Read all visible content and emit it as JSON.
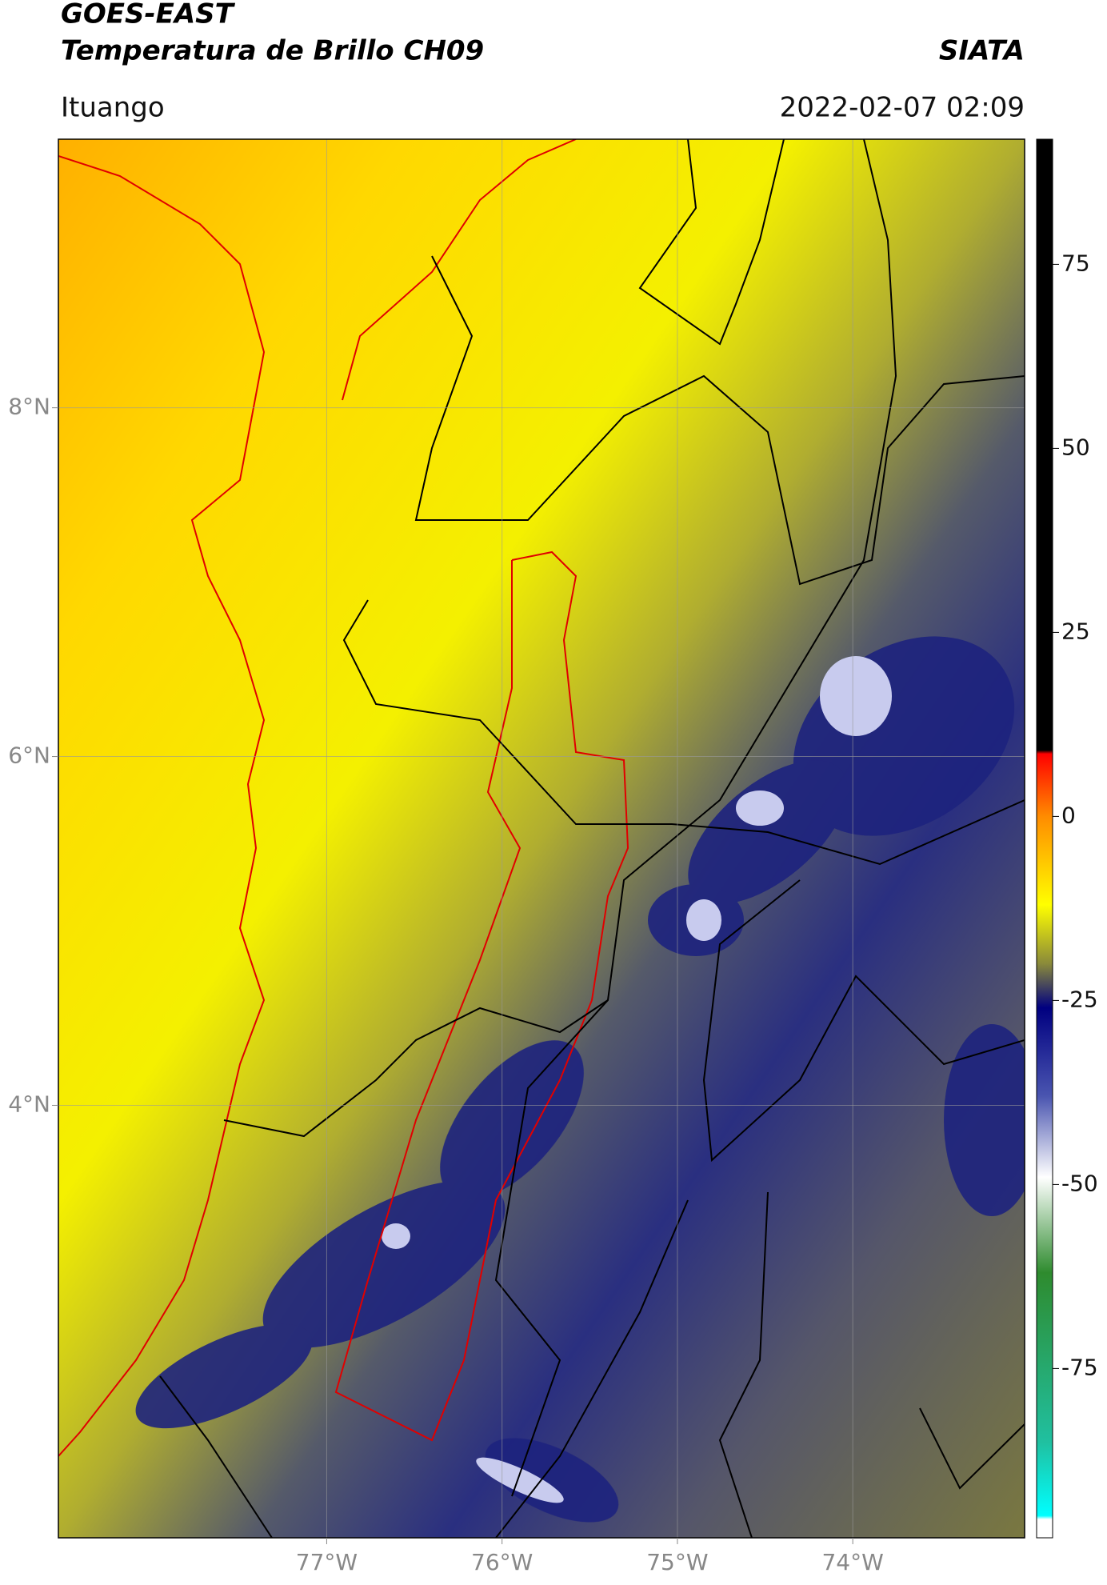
{
  "map": {
    "title": "GOES-EAST",
    "subtitle": "Temperatura de Brillo CH09",
    "brand": "SIATA",
    "location": "Ituango",
    "datetime": "2022-02-07 02:09",
    "xlim": [
      -78.53,
      -73.02
    ],
    "ylim": [
      1.52,
      9.54
    ],
    "xticks": [
      {
        "value": -77,
        "label": "77°W"
      },
      {
        "value": -76,
        "label": "76°W"
      },
      {
        "value": -75,
        "label": "75°W"
      },
      {
        "value": -74,
        "label": "74°W"
      }
    ],
    "yticks": [
      {
        "value": 8,
        "label": "8°N"
      },
      {
        "value": 6,
        "label": "6°N"
      },
      {
        "value": 4,
        "label": "4°N"
      }
    ],
    "grid": true,
    "colorbar": {
      "lim": [
        -98,
        92
      ],
      "ticks": [
        75,
        50,
        25,
        0,
        -25,
        -50,
        -75
      ],
      "stops": [
        {
          "value": 92,
          "color": "#000000"
        },
        {
          "value": 9,
          "color": "#000000"
        },
        {
          "value": 8.5,
          "color": "#ff0000"
        },
        {
          "value": 0,
          "color": "#ff8c00"
        },
        {
          "value": -12,
          "color": "#ffff00"
        },
        {
          "value": -20,
          "color": "#8a8a3a"
        },
        {
          "value": -26,
          "color": "#000080"
        },
        {
          "value": -38,
          "color": "#4a55b0"
        },
        {
          "value": -49,
          "color": "#ffffff"
        },
        {
          "value": -62,
          "color": "#2e8b2e"
        },
        {
          "value": -85,
          "color": "#20c0a0"
        },
        {
          "value": -95,
          "color": "#00ffff"
        },
        {
          "value": -95.5,
          "color": "#ffffff"
        },
        {
          "value": -98,
          "color": "#ffffff"
        }
      ]
    }
  }
}
